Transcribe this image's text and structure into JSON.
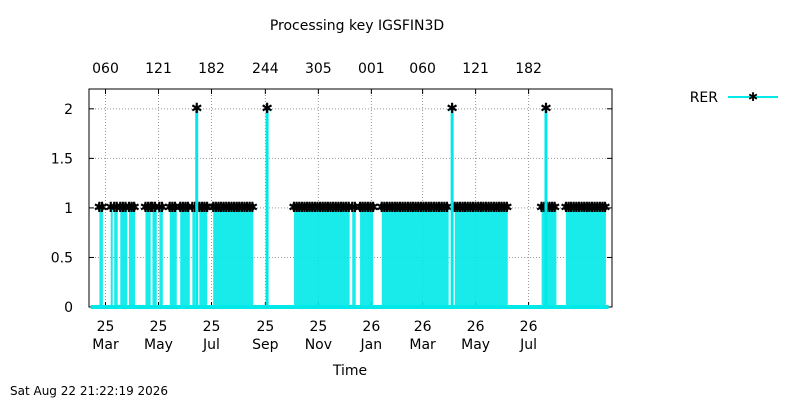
{
  "chart_data": {
    "type": "line",
    "title": "Processing key IGSFIN3D",
    "xlabel": "Time",
    "ylabel": "",
    "ylim": [
      0,
      2.2
    ],
    "xlim": [
      "2025-02-10",
      "2026-10-05"
    ],
    "y_ticks": [
      "0",
      "0.5",
      "1",
      "1.5",
      "2"
    ],
    "y_tick_values": [
      0,
      0.5,
      1,
      1.5,
      2
    ],
    "x_ticks_bottom": [
      {
        "date": "2025-03-01",
        "line1": "25",
        "line2": "Mar"
      },
      {
        "date": "2025-05-01",
        "line1": "25",
        "line2": "May"
      },
      {
        "date": "2025-07-01",
        "line1": "25",
        "line2": "Jul"
      },
      {
        "date": "2025-09-01",
        "line1": "25",
        "line2": "Sep"
      },
      {
        "date": "2025-11-01",
        "line1": "25",
        "line2": "Nov"
      },
      {
        "date": "2026-01-01",
        "line1": "26",
        "line2": "Jan"
      },
      {
        "date": "2026-03-01",
        "line1": "26",
        "line2": "Mar"
      },
      {
        "date": "2026-05-01",
        "line1": "26",
        "line2": "May"
      },
      {
        "date": "2026-07-01",
        "line1": "26",
        "line2": "Jul"
      }
    ],
    "x_ticks_top": [
      {
        "date": "2025-03-01",
        "label": "060"
      },
      {
        "date": "2025-05-01",
        "label": "121"
      },
      {
        "date": "2025-07-01",
        "label": "182"
      },
      {
        "date": "2025-09-01",
        "label": "244"
      },
      {
        "date": "2025-11-01",
        "label": "305"
      },
      {
        "date": "2026-01-01",
        "label": "001"
      },
      {
        "date": "2026-03-01",
        "label": "060"
      },
      {
        "date": "2026-05-01",
        "label": "121"
      },
      {
        "date": "2026-07-01",
        "label": "182"
      }
    ],
    "grid": true,
    "legend_position": "top-right",
    "series": [
      {
        "name": "RER",
        "color": "#00e8e8",
        "baseline": 0,
        "blocks": [
          {
            "start": "2025-02-22",
            "end": "2025-02-26",
            "v": 1
          },
          {
            "start": "2025-03-07",
            "end": "2025-03-08",
            "v": 1
          },
          {
            "start": "2025-03-11",
            "end": "2025-03-15",
            "v": 1
          },
          {
            "start": "2025-03-18",
            "end": "2025-03-26",
            "v": 1
          },
          {
            "start": "2025-03-28",
            "end": "2025-04-04",
            "v": 1
          },
          {
            "start": "2025-04-16",
            "end": "2025-04-22",
            "v": 1
          },
          {
            "start": "2025-04-24",
            "end": "2025-04-29",
            "v": 1
          },
          {
            "start": "2025-05-02",
            "end": "2025-05-06",
            "v": 1
          },
          {
            "start": "2025-05-14",
            "end": "2025-05-22",
            "v": 1
          },
          {
            "start": "2025-05-26",
            "end": "2025-06-06",
            "v": 1
          },
          {
            "start": "2025-06-09",
            "end": "2025-06-12",
            "v": 1
          },
          {
            "start": "2025-06-17",
            "end": "2025-06-26",
            "v": 1
          },
          {
            "start": "2025-07-03",
            "end": "2025-08-18",
            "v": 1
          },
          {
            "start": "2025-10-04",
            "end": "2025-12-07",
            "v": 1
          },
          {
            "start": "2025-12-10",
            "end": "2025-12-14",
            "v": 1
          },
          {
            "start": "2025-12-19",
            "end": "2026-01-03",
            "v": 1
          },
          {
            "start": "2026-01-13",
            "end": "2026-03-31",
            "v": 1
          },
          {
            "start": "2026-04-07",
            "end": "2026-06-07",
            "v": 1
          },
          {
            "start": "2026-07-16",
            "end": "2026-08-02",
            "v": 1
          },
          {
            "start": "2026-08-13",
            "end": "2026-09-28",
            "v": 1
          }
        ],
        "spikes": [
          {
            "date": "2025-06-14",
            "v": 2
          },
          {
            "date": "2025-09-03",
            "v": 2
          },
          {
            "date": "2026-04-04",
            "v": 2
          },
          {
            "date": "2026-07-21",
            "v": 2
          }
        ]
      }
    ]
  },
  "footer": {
    "timestamp": "Sat Aug 22 21:22:19 2026"
  }
}
